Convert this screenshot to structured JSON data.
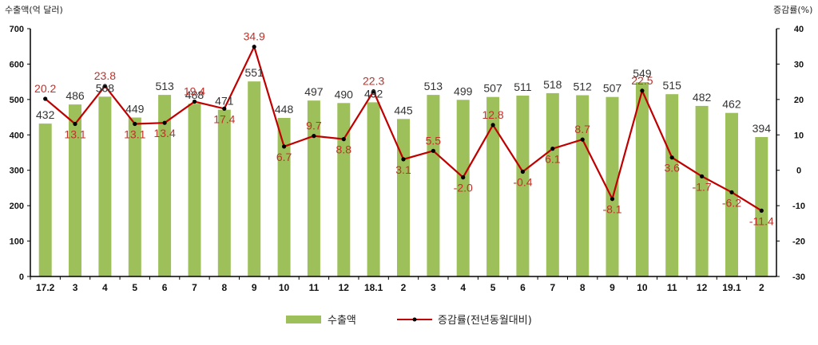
{
  "chart_data": {
    "type": "bar",
    "categories": [
      "17.2",
      "3",
      "4",
      "5",
      "6",
      "7",
      "8",
      "9",
      "10",
      "11",
      "12",
      "18.1",
      "2",
      "3",
      "4",
      "5",
      "6",
      "7",
      "8",
      "9",
      "10",
      "11",
      "12",
      "19.1",
      "2"
    ],
    "left_axis_title": "수출액(억 달러)",
    "right_axis_title": "증감률(%)",
    "ylim_left": [
      0,
      700
    ],
    "ylim_right": [
      -30,
      40
    ],
    "left_ticks": [
      "0",
      "100",
      "200",
      "300",
      "400",
      "500",
      "600",
      "700"
    ],
    "right_ticks": [
      "-30",
      "-20",
      "-10",
      "0",
      "10",
      "20",
      "30",
      "40"
    ],
    "grid": false,
    "legend_position": "bottom",
    "series": [
      {
        "name": "수출액",
        "type": "bar",
        "axis": "left",
        "values": [
          432,
          486,
          508,
          449,
          513,
          488,
          471,
          551,
          448,
          497,
          490,
          492,
          445,
          513,
          499,
          507,
          511,
          518,
          512,
          507,
          549,
          515,
          482,
          462,
          394
        ],
        "labels": [
          "432",
          "486",
          "508",
          "449",
          "513",
          "488",
          "471",
          "551",
          "448",
          "497",
          "490",
          "492",
          "445",
          "513",
          "499",
          "507",
          "511",
          "518",
          "512",
          "507",
          "549",
          "515",
          "482",
          "462",
          "394"
        ]
      },
      {
        "name": "증감률(전년동월대비)",
        "type": "line",
        "axis": "right",
        "values": [
          20.2,
          13.1,
          23.8,
          13.1,
          13.4,
          19.4,
          17.4,
          34.9,
          6.7,
          9.7,
          8.8,
          22.3,
          3.1,
          5.5,
          -2.0,
          12.8,
          -0.4,
          6.1,
          8.7,
          -8.1,
          22.5,
          3.6,
          -1.7,
          -6.2,
          -11.4
        ],
        "labels": [
          "20.2",
          "13.1",
          "23.8",
          "13.1",
          "13.4",
          "19.4",
          "17.4",
          "34.9",
          "6.7",
          "9.7",
          "8.8",
          "22.3",
          "3.1",
          "5.5",
          "-2.0",
          "12.8",
          "-0.4",
          "6.1",
          "8.7",
          "-8.1",
          "22.5",
          "3.6",
          "-1.7",
          "-6.2",
          "-11.4"
        ]
      }
    ],
    "colors": {
      "bar": "#9dc05a",
      "bar_last_label": "#2e5f9e",
      "line": "#c00000",
      "line_label": "#c0302a",
      "axis": "#000000"
    }
  }
}
